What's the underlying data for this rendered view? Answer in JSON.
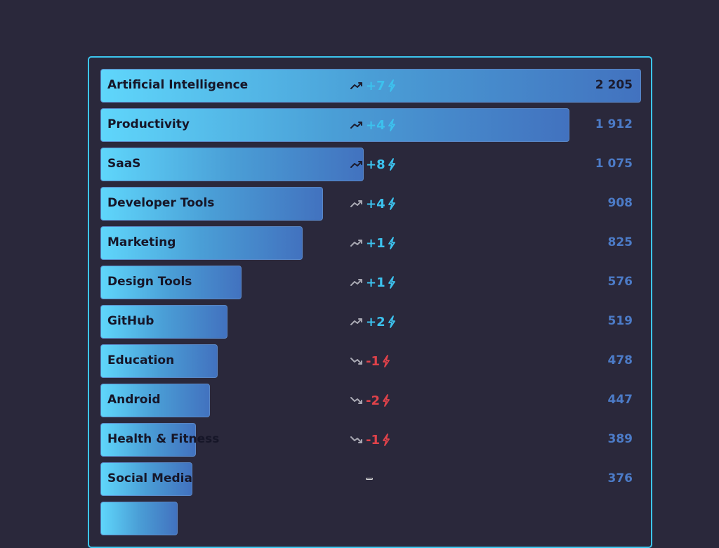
{
  "colors": {
    "background": "#2a283b",
    "panel_border": "#3cc6ee",
    "bar_start": "#5fd6fb",
    "bar_end": "#4272bf",
    "up": "#3cc2ee",
    "down": "#e0424a",
    "count": "#4c7bc7"
  },
  "max_count": 2205,
  "categories": [
    {
      "name": "Artificial Intelligence",
      "count": "2 205",
      "value": 2205,
      "delta": "+7",
      "trend": "up",
      "trend_icon": "trending-up-icon",
      "delta_icon": "bolt-icon"
    },
    {
      "name": "Productivity",
      "count": "1 912",
      "value": 1912,
      "delta": "+4",
      "trend": "up",
      "trend_icon": "trending-up-icon",
      "delta_icon": "bolt-icon"
    },
    {
      "name": "SaaS",
      "count": "1 075",
      "value": 1075,
      "delta": "+8",
      "trend": "up",
      "trend_icon": "trending-up-icon",
      "delta_icon": "bolt-icon"
    },
    {
      "name": "Developer Tools",
      "count": "908",
      "value": 908,
      "delta": "+4",
      "trend": "up",
      "trend_icon": "trending-up-icon",
      "delta_icon": "bolt-icon"
    },
    {
      "name": "Marketing",
      "count": "825",
      "value": 825,
      "delta": "+1",
      "trend": "up",
      "trend_icon": "trending-up-icon",
      "delta_icon": "bolt-icon"
    },
    {
      "name": "Design Tools",
      "count": "576",
      "value": 576,
      "delta": "+1",
      "trend": "up",
      "trend_icon": "trending-up-icon",
      "delta_icon": "bolt-icon"
    },
    {
      "name": "GitHub",
      "count": "519",
      "value": 519,
      "delta": "+2",
      "trend": "up",
      "trend_icon": "trending-up-icon",
      "delta_icon": "bolt-icon"
    },
    {
      "name": "Education",
      "count": "478",
      "value": 478,
      "delta": "-1",
      "trend": "down",
      "trend_icon": "trending-down-icon",
      "delta_icon": "bolt-icon"
    },
    {
      "name": "Android",
      "count": "447",
      "value": 447,
      "delta": "-2",
      "trend": "down",
      "trend_icon": "trending-down-icon",
      "delta_icon": "bolt-icon"
    },
    {
      "name": "Health & Fitness",
      "count": "389",
      "value": 389,
      "delta": "-1",
      "trend": "down",
      "trend_icon": "trending-down-icon",
      "delta_icon": "bolt-icon"
    },
    {
      "name": "Social Media",
      "count": "376",
      "value": 376,
      "delta": "",
      "trend": "flat",
      "trend_icon": "flat-dash-icon",
      "delta_icon": ""
    },
    {
      "name": "",
      "count": "",
      "value": 300,
      "delta": "",
      "trend": "cut-off",
      "trend_icon": "",
      "delta_icon": ""
    }
  ]
}
